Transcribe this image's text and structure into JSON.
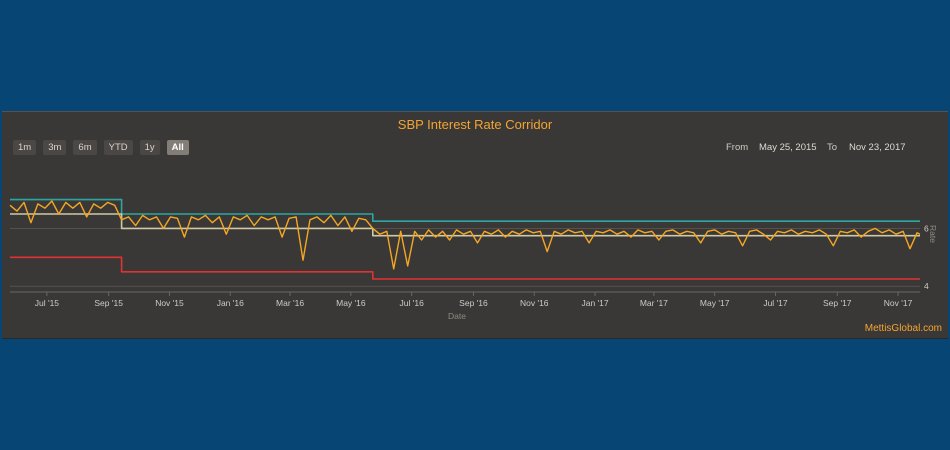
{
  "title": "SBP Interest Rate Corridor",
  "range_selector": {
    "buttons": [
      "1m",
      "3m",
      "6m",
      "YTD",
      "1y",
      "All"
    ],
    "active": "All",
    "from_label": "From",
    "from_value": "May 25, 2015",
    "to_label": "To",
    "to_value": "Nov 23, 2017"
  },
  "credit": "MettisGlobal.com",
  "colors": {
    "ceiling": "#2aa7a0",
    "floor": "#e03232",
    "policy": "#cfc9a4",
    "overnight": "#f5a623"
  },
  "chart_data": {
    "type": "line",
    "title": "SBP Interest Rate Corridor",
    "xlabel": "Date",
    "ylabel": "Rate",
    "x_ticks": [
      "Jul '15",
      "Sep '15",
      "Nov '15",
      "Jan '16",
      "Mar '16",
      "May '16",
      "Jul '16",
      "Sep '16",
      "Nov '16",
      "Jan '17",
      "Mar '17",
      "May '17",
      "Jul '17",
      "Sep '17",
      "Nov '17"
    ],
    "y_ticks": [
      "4",
      "6"
    ],
    "x_range": [
      "2015-05-25",
      "2017-11-23"
    ],
    "ylim": [
      3.8,
      7.4
    ],
    "grid": true,
    "legend": "none",
    "series": [
      {
        "key": "ceiling",
        "points": [
          [
            "2015-05-25",
            7.0
          ],
          [
            "2015-09-14",
            7.0
          ],
          [
            "2015-09-14",
            6.5
          ],
          [
            "2016-05-23",
            6.5
          ],
          [
            "2016-05-23",
            6.25
          ],
          [
            "2017-11-23",
            6.25
          ]
        ]
      },
      {
        "key": "policy",
        "points": [
          [
            "2015-05-25",
            6.5
          ],
          [
            "2015-09-14",
            6.5
          ],
          [
            "2015-09-14",
            6.0
          ],
          [
            "2016-05-23",
            6.0
          ],
          [
            "2016-05-23",
            5.75
          ],
          [
            "2017-11-23",
            5.75
          ]
        ]
      },
      {
        "key": "floor",
        "points": [
          [
            "2015-05-25",
            5.0
          ],
          [
            "2015-09-14",
            5.0
          ],
          [
            "2015-09-14",
            4.5
          ],
          [
            "2016-05-23",
            4.5
          ],
          [
            "2016-05-23",
            4.25
          ],
          [
            "2017-11-23",
            4.25
          ]
        ]
      },
      {
        "key": "overnight",
        "points": [
          [
            "2015-05-25",
            6.8
          ],
          [
            "2015-06-01",
            6.6
          ],
          [
            "2015-06-08",
            6.9
          ],
          [
            "2015-06-15",
            6.2
          ],
          [
            "2015-06-22",
            6.85
          ],
          [
            "2015-06-29",
            6.7
          ],
          [
            "2015-07-06",
            6.95
          ],
          [
            "2015-07-13",
            6.5
          ],
          [
            "2015-07-20",
            6.9
          ],
          [
            "2015-07-27",
            6.7
          ],
          [
            "2015-08-03",
            6.9
          ],
          [
            "2015-08-10",
            6.4
          ],
          [
            "2015-08-17",
            6.85
          ],
          [
            "2015-08-24",
            6.7
          ],
          [
            "2015-08-31",
            6.9
          ],
          [
            "2015-09-07",
            6.8
          ],
          [
            "2015-09-14",
            6.3
          ],
          [
            "2015-09-21",
            6.4
          ],
          [
            "2015-09-28",
            6.1
          ],
          [
            "2015-10-05",
            6.45
          ],
          [
            "2015-10-12",
            6.3
          ],
          [
            "2015-10-19",
            6.4
          ],
          [
            "2015-10-26",
            6.0
          ],
          [
            "2015-11-02",
            6.4
          ],
          [
            "2015-11-09",
            6.35
          ],
          [
            "2015-11-16",
            5.7
          ],
          [
            "2015-11-23",
            6.4
          ],
          [
            "2015-11-30",
            6.3
          ],
          [
            "2015-12-07",
            6.45
          ],
          [
            "2015-12-14",
            6.2
          ],
          [
            "2015-12-21",
            6.4
          ],
          [
            "2015-12-28",
            5.8
          ],
          [
            "2016-01-04",
            6.4
          ],
          [
            "2016-01-11",
            6.3
          ],
          [
            "2016-01-18",
            6.45
          ],
          [
            "2016-01-25",
            6.1
          ],
          [
            "2016-02-01",
            6.4
          ],
          [
            "2016-02-08",
            6.3
          ],
          [
            "2016-02-15",
            6.4
          ],
          [
            "2016-02-22",
            5.7
          ],
          [
            "2016-02-29",
            6.35
          ],
          [
            "2016-03-07",
            6.4
          ],
          [
            "2016-03-14",
            4.9
          ],
          [
            "2016-03-21",
            6.3
          ],
          [
            "2016-03-28",
            6.4
          ],
          [
            "2016-04-04",
            6.2
          ],
          [
            "2016-04-11",
            6.45
          ],
          [
            "2016-04-18",
            6.1
          ],
          [
            "2016-04-25",
            6.4
          ],
          [
            "2016-05-02",
            5.9
          ],
          [
            "2016-05-09",
            6.35
          ],
          [
            "2016-05-16",
            6.3
          ],
          [
            "2016-05-23",
            6.0
          ],
          [
            "2016-05-30",
            5.8
          ],
          [
            "2016-06-06",
            5.9
          ],
          [
            "2016-06-13",
            4.6
          ],
          [
            "2016-06-20",
            5.9
          ],
          [
            "2016-06-27",
            4.7
          ],
          [
            "2016-07-04",
            5.9
          ],
          [
            "2016-07-11",
            5.6
          ],
          [
            "2016-07-18",
            5.95
          ],
          [
            "2016-07-25",
            5.7
          ],
          [
            "2016-08-01",
            5.9
          ],
          [
            "2016-08-08",
            5.6
          ],
          [
            "2016-08-15",
            5.95
          ],
          [
            "2016-08-22",
            5.8
          ],
          [
            "2016-08-29",
            5.9
          ],
          [
            "2016-09-05",
            5.5
          ],
          [
            "2016-09-12",
            5.9
          ],
          [
            "2016-09-19",
            5.8
          ],
          [
            "2016-09-26",
            5.95
          ],
          [
            "2016-10-03",
            5.7
          ],
          [
            "2016-10-10",
            5.9
          ],
          [
            "2016-10-17",
            5.8
          ],
          [
            "2016-10-24",
            5.95
          ],
          [
            "2016-10-31",
            5.85
          ],
          [
            "2016-11-07",
            5.9
          ],
          [
            "2016-11-14",
            5.2
          ],
          [
            "2016-11-21",
            5.9
          ],
          [
            "2016-11-28",
            5.8
          ],
          [
            "2016-12-05",
            5.95
          ],
          [
            "2016-12-12",
            5.85
          ],
          [
            "2016-12-19",
            5.9
          ],
          [
            "2016-12-26",
            5.5
          ],
          [
            "2017-01-02",
            5.9
          ],
          [
            "2017-01-09",
            5.85
          ],
          [
            "2017-01-16",
            5.95
          ],
          [
            "2017-01-23",
            5.8
          ],
          [
            "2017-01-30",
            5.9
          ],
          [
            "2017-02-06",
            5.7
          ],
          [
            "2017-02-13",
            5.95
          ],
          [
            "2017-02-20",
            5.85
          ],
          [
            "2017-02-27",
            5.9
          ],
          [
            "2017-03-06",
            5.6
          ],
          [
            "2017-03-13",
            5.9
          ],
          [
            "2017-03-20",
            5.95
          ],
          [
            "2017-03-27",
            5.8
          ],
          [
            "2017-04-03",
            5.9
          ],
          [
            "2017-04-10",
            5.85
          ],
          [
            "2017-04-17",
            5.5
          ],
          [
            "2017-04-24",
            5.9
          ],
          [
            "2017-05-01",
            5.95
          ],
          [
            "2017-05-08",
            5.8
          ],
          [
            "2017-05-15",
            5.9
          ],
          [
            "2017-05-22",
            5.85
          ],
          [
            "2017-05-29",
            5.4
          ],
          [
            "2017-06-05",
            5.9
          ],
          [
            "2017-06-12",
            5.95
          ],
          [
            "2017-06-19",
            5.8
          ],
          [
            "2017-06-26",
            5.6
          ],
          [
            "2017-07-03",
            5.9
          ],
          [
            "2017-07-10",
            5.85
          ],
          [
            "2017-07-17",
            5.95
          ],
          [
            "2017-07-24",
            5.8
          ],
          [
            "2017-07-31",
            5.9
          ],
          [
            "2017-08-07",
            5.85
          ],
          [
            "2017-08-14",
            5.95
          ],
          [
            "2017-08-21",
            5.8
          ],
          [
            "2017-08-28",
            5.4
          ],
          [
            "2017-09-04",
            5.9
          ],
          [
            "2017-09-11",
            5.85
          ],
          [
            "2017-09-18",
            5.95
          ],
          [
            "2017-09-25",
            5.7
          ],
          [
            "2017-10-02",
            5.9
          ],
          [
            "2017-10-09",
            6.0
          ],
          [
            "2017-10-16",
            5.85
          ],
          [
            "2017-10-23",
            5.95
          ],
          [
            "2017-10-30",
            5.8
          ],
          [
            "2017-11-06",
            5.9
          ],
          [
            "2017-11-13",
            5.3
          ],
          [
            "2017-11-20",
            5.85
          ],
          [
            "2017-11-23",
            5.8
          ]
        ]
      }
    ]
  }
}
